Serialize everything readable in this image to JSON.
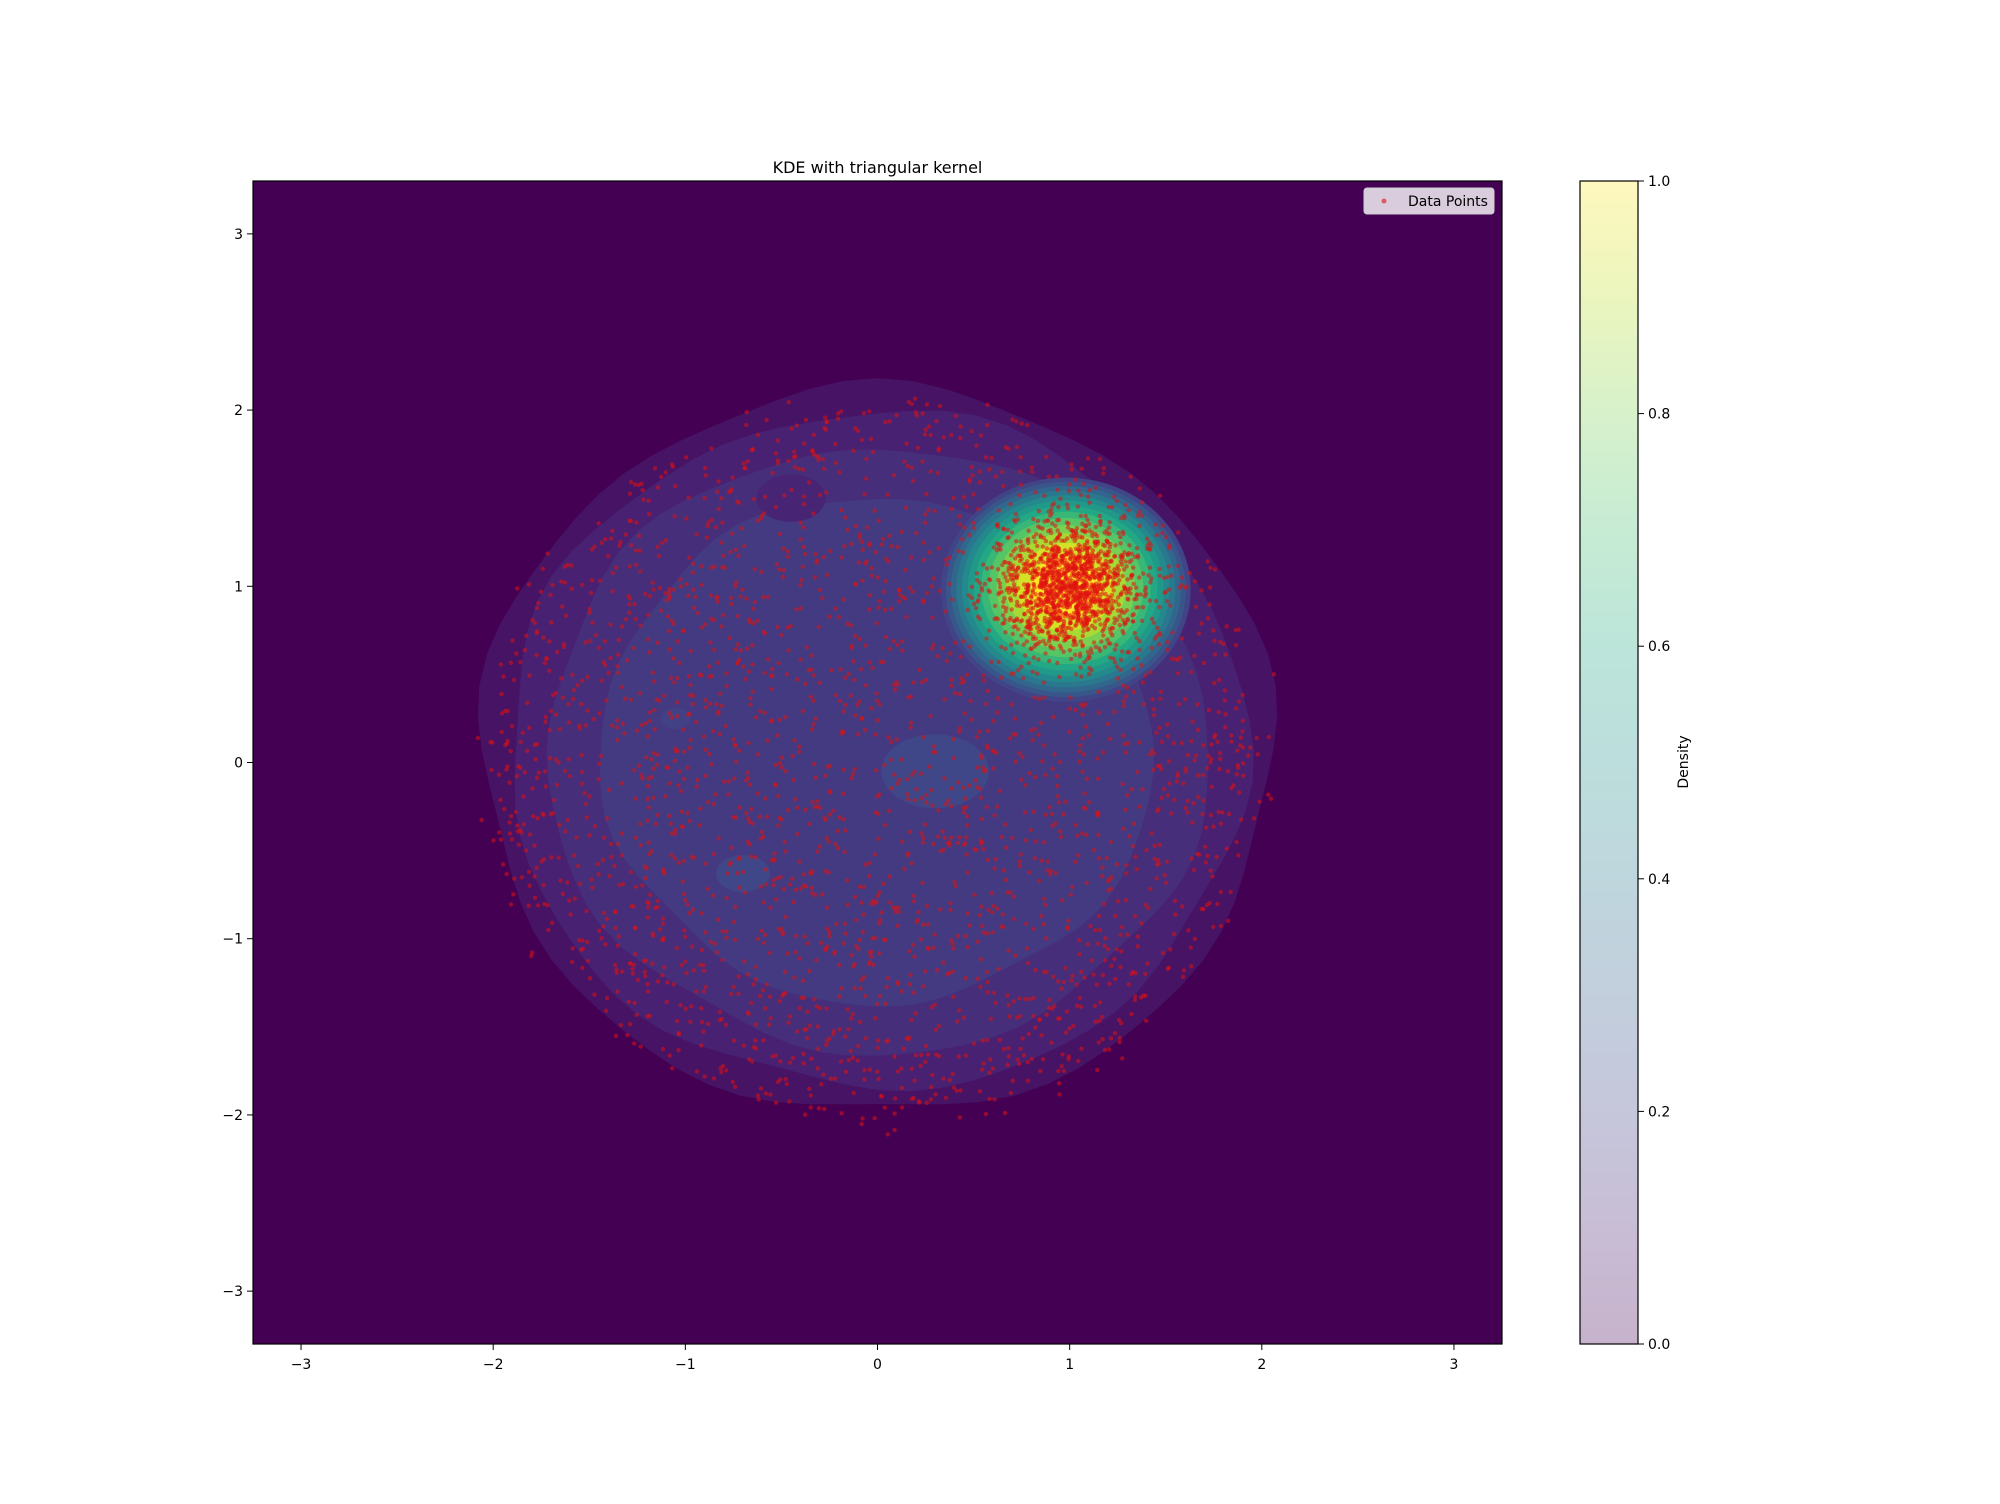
{
  "chart_data": {
    "type": "contour+scatter",
    "title": "KDE with triangular kernel",
    "xlabel": "",
    "ylabel": "",
    "xlim": [
      -3.25,
      3.25
    ],
    "ylim": [
      -3.3,
      3.3
    ],
    "xticks": [
      -3,
      -2,
      -1,
      0,
      1,
      2,
      3
    ],
    "yticks": [
      -3,
      -2,
      -1,
      0,
      1,
      2,
      3
    ],
    "grid": false,
    "legend": {
      "placement": "top-right",
      "entries": [
        "Data Points"
      ]
    },
    "colorbar": {
      "label": "Density",
      "range": [
        0.0,
        1.0
      ],
      "ticks": [
        "0.0",
        "0.2",
        "0.4",
        "0.6",
        "0.8",
        "1.0"
      ],
      "colormap": "viridis"
    },
    "background_color": "#440154",
    "point_color": "#e01010",
    "density_components": [
      {
        "name": "uniform disc",
        "center": [
          0.0,
          0.0
        ],
        "radius": 2.0,
        "peak_density": 0.17
      },
      {
        "name": "cluster",
        "center": [
          1.0,
          1.0
        ],
        "radius": 0.65,
        "peak_density": 1.0
      }
    ],
    "series": [
      {
        "name": "Data Points",
        "type": "scatter",
        "uniform_disc": {
          "center": [
            0.0,
            0.0
          ],
          "radius": 2.05,
          "count": 2400
        },
        "gaussian_cluster": {
          "center": [
            1.0,
            1.0
          ],
          "std": 0.18,
          "count": 1300
        }
      }
    ]
  }
}
